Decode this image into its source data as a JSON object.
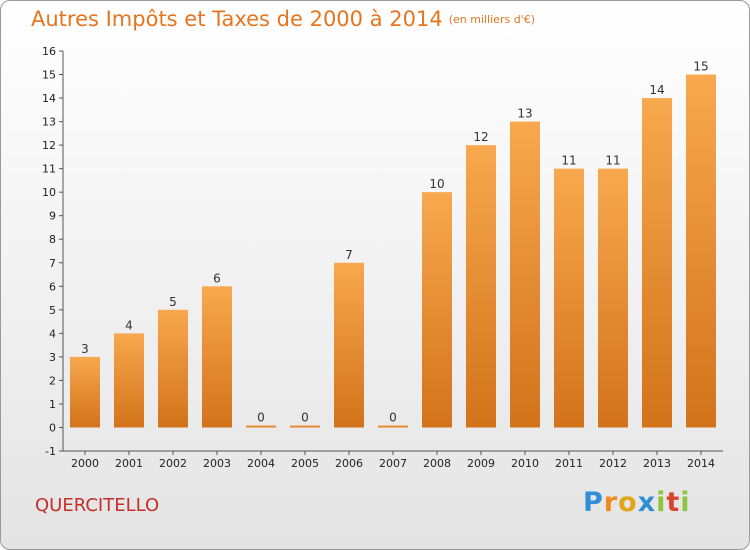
{
  "header": {
    "title": "Autres Impôts et Taxes de 2000 à 2014",
    "unit": "(en milliers d'€)"
  },
  "footer": {
    "place": "QUERCITELLO",
    "logo": "Proxiti"
  },
  "colors": {
    "bar_top": "#f8a84e",
    "bar_bottom": "#d2731a",
    "title": "#e5761f",
    "place": "#c3302a"
  },
  "chart_data": {
    "type": "bar",
    "title": "Autres Impôts et Taxes de 2000 à 2014",
    "subtitle": "(en milliers d'€)",
    "xlabel": "",
    "ylabel": "",
    "categories": [
      "2000",
      "2001",
      "2002",
      "2003",
      "2004",
      "2005",
      "2006",
      "2007",
      "2008",
      "2009",
      "2010",
      "2011",
      "2012",
      "2013",
      "2014"
    ],
    "values": [
      3,
      4,
      5,
      6,
      0,
      0,
      7,
      0,
      10,
      12,
      13,
      11,
      11,
      14,
      15
    ],
    "ylim": [
      -1,
      16
    ],
    "yticks": [
      -1,
      0,
      1,
      2,
      3,
      4,
      5,
      6,
      7,
      8,
      9,
      10,
      11,
      12,
      13,
      14,
      15,
      16
    ],
    "grid": false,
    "legend": "none"
  }
}
